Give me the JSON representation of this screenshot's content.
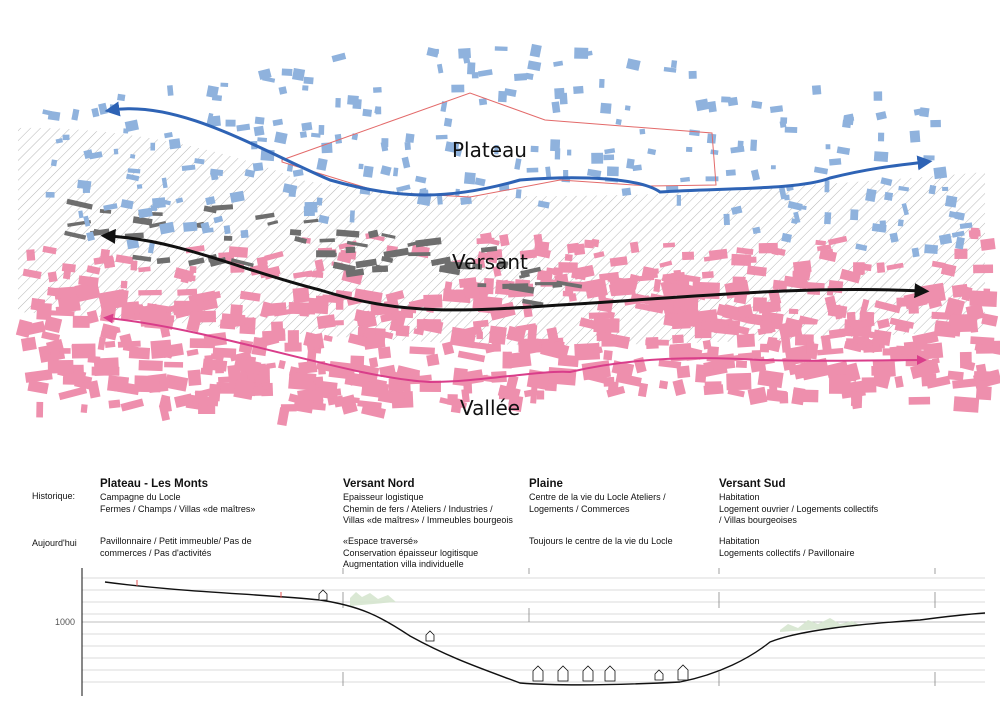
{
  "zones": {
    "plateau": "Plateau",
    "versant": "Versant",
    "vallee": "Vallée"
  },
  "colors": {
    "plateau_buildings": "#8fb2dd",
    "plateau_arrow": "#2e63b5",
    "versant_buildings": "#6e6e6e",
    "versant_arrow": "#111111",
    "vallee_buildings": "#ee8fad",
    "vallee_arrow": "#d93d8a",
    "boundary": "#e36a6a",
    "hatch": "#9a9a9a"
  },
  "rows": {
    "historique": "Historique:",
    "aujourdhui": "Aujourd'hui"
  },
  "columns": [
    {
      "title": "Plateau - Les Monts",
      "historique": "Campagne du Locle\nFermes / Champs / Villas «de maîtres»",
      "aujourdhui": "Pavillonnaire / Petit immeuble/ Pas de\ncommerces / Pas d'activités"
    },
    {
      "title": "Versant Nord",
      "historique": "Epaisseur logistique\nChemin de fers / Ateliers / Industries /\nVillas «de maîtres» / Immeubles bourgeois",
      "aujourdhui": "«Espace traversé»\nConservation épaisseur logitisque\nAugmentation villa individuelle"
    },
    {
      "title": "Plaine",
      "historique": "Centre de la vie du Locle Ateliers /\nLogements / Commerces",
      "aujourdhui": "Toujours le centre de la vie du Locle"
    },
    {
      "title": "Versant Sud",
      "historique": "Habitation\nLogement ouvrier / Logements collectifs\n/ Villas bourgeoises",
      "aujourdhui": "Habitation\nLogements collectifs / Pavillonaire"
    }
  ],
  "profile": {
    "elevation_label": "1000"
  }
}
